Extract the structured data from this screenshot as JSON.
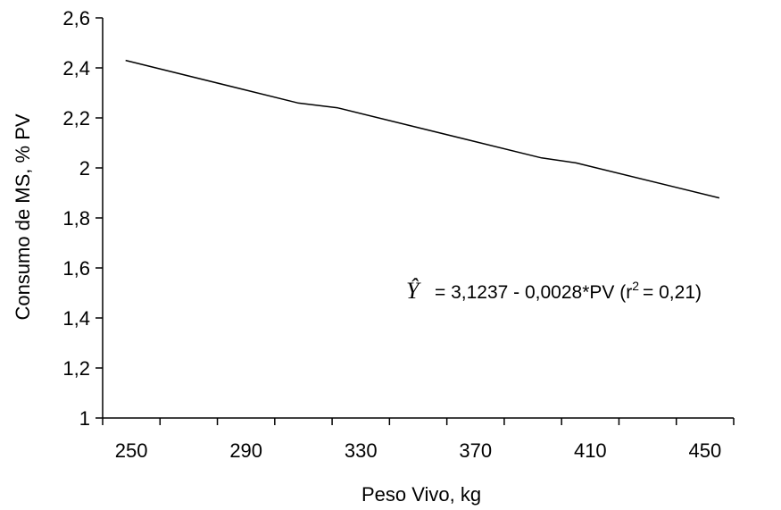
{
  "chart_data": {
    "type": "line",
    "xlabel": "Peso Vivo, kg",
    "ylabel": "Consumo de MS, % PV",
    "xlim": [
      240,
      460
    ],
    "ylim": [
      1,
      2.6
    ],
    "x_ticks": [
      250,
      290,
      330,
      370,
      410,
      450
    ],
    "x_tick_labels": [
      "250",
      "290",
      "330",
      "370",
      "410",
      "450"
    ],
    "y_ticks": [
      1,
      1.2,
      1.4,
      1.6,
      1.8,
      2,
      2.2,
      2.4,
      2.6
    ],
    "y_tick_labels": [
      "1",
      "1,2",
      "1,4",
      "1,6",
      "1,8",
      "2",
      "2,2",
      "2,4",
      "2,6"
    ],
    "grid": false,
    "series": [
      {
        "x": [
          248,
          308,
          322,
          393,
          405,
          455
        ],
        "values": [
          2.43,
          2.26,
          2.24,
          2.04,
          2.02,
          1.88
        ],
        "color": "#000000"
      }
    ],
    "annotation": {
      "symbol": "Ŷ",
      "text_before_sup": "= 3,1237 - 0,0028*PV (r",
      "sup": "2",
      "text_after_sup": "= 0,21)"
    }
  }
}
